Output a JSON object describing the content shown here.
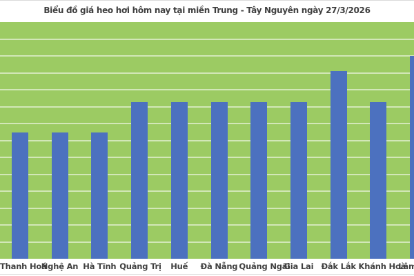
{
  "page": {
    "background_color": "#ffffff",
    "top_rule_color": "#d9d9d9",
    "bottom_rule_color": "#dadada"
  },
  "chart_data": {
    "type": "bar",
    "title": "Biểu đồ giá heo hơi hôm nay tại miền Trung - Tây Nguyên ngày 27/3/2026",
    "categories": [
      "Thanh Hoá",
      "Nghệ An",
      "Hà Tĩnh",
      "Quảng Trị",
      "Huế",
      "Đà Nẵng",
      "Quảng Ngãi",
      "Gia Lai",
      "Đắk Lắk",
      "Khánh Hoà",
      "Lâm Đồng"
    ],
    "values": [
      53.4,
      53.4,
      53.4,
      66.3,
      66.3,
      66.3,
      66.3,
      66.3,
      79.4,
      66.3,
      85.8
    ],
    "value_unit": "percent of plot-area height (no y-axis tick labels are visible in the image)",
    "xlabel": "",
    "ylabel": "",
    "legend": "none",
    "grid": {
      "horizontal_gridline_count": 13,
      "gridline_color": "rgba(255,255,255,0.55)"
    },
    "layout_notes": "plot area fills full image width with no visible y-axis; last category (Lâm Đồng) is clipped at the right edge of the image",
    "colors": {
      "bar_fill": "#4c71bf",
      "plot_background": "#9ccb63",
      "title_text": "#3e3e3e",
      "category_label_text": "#404040"
    }
  }
}
